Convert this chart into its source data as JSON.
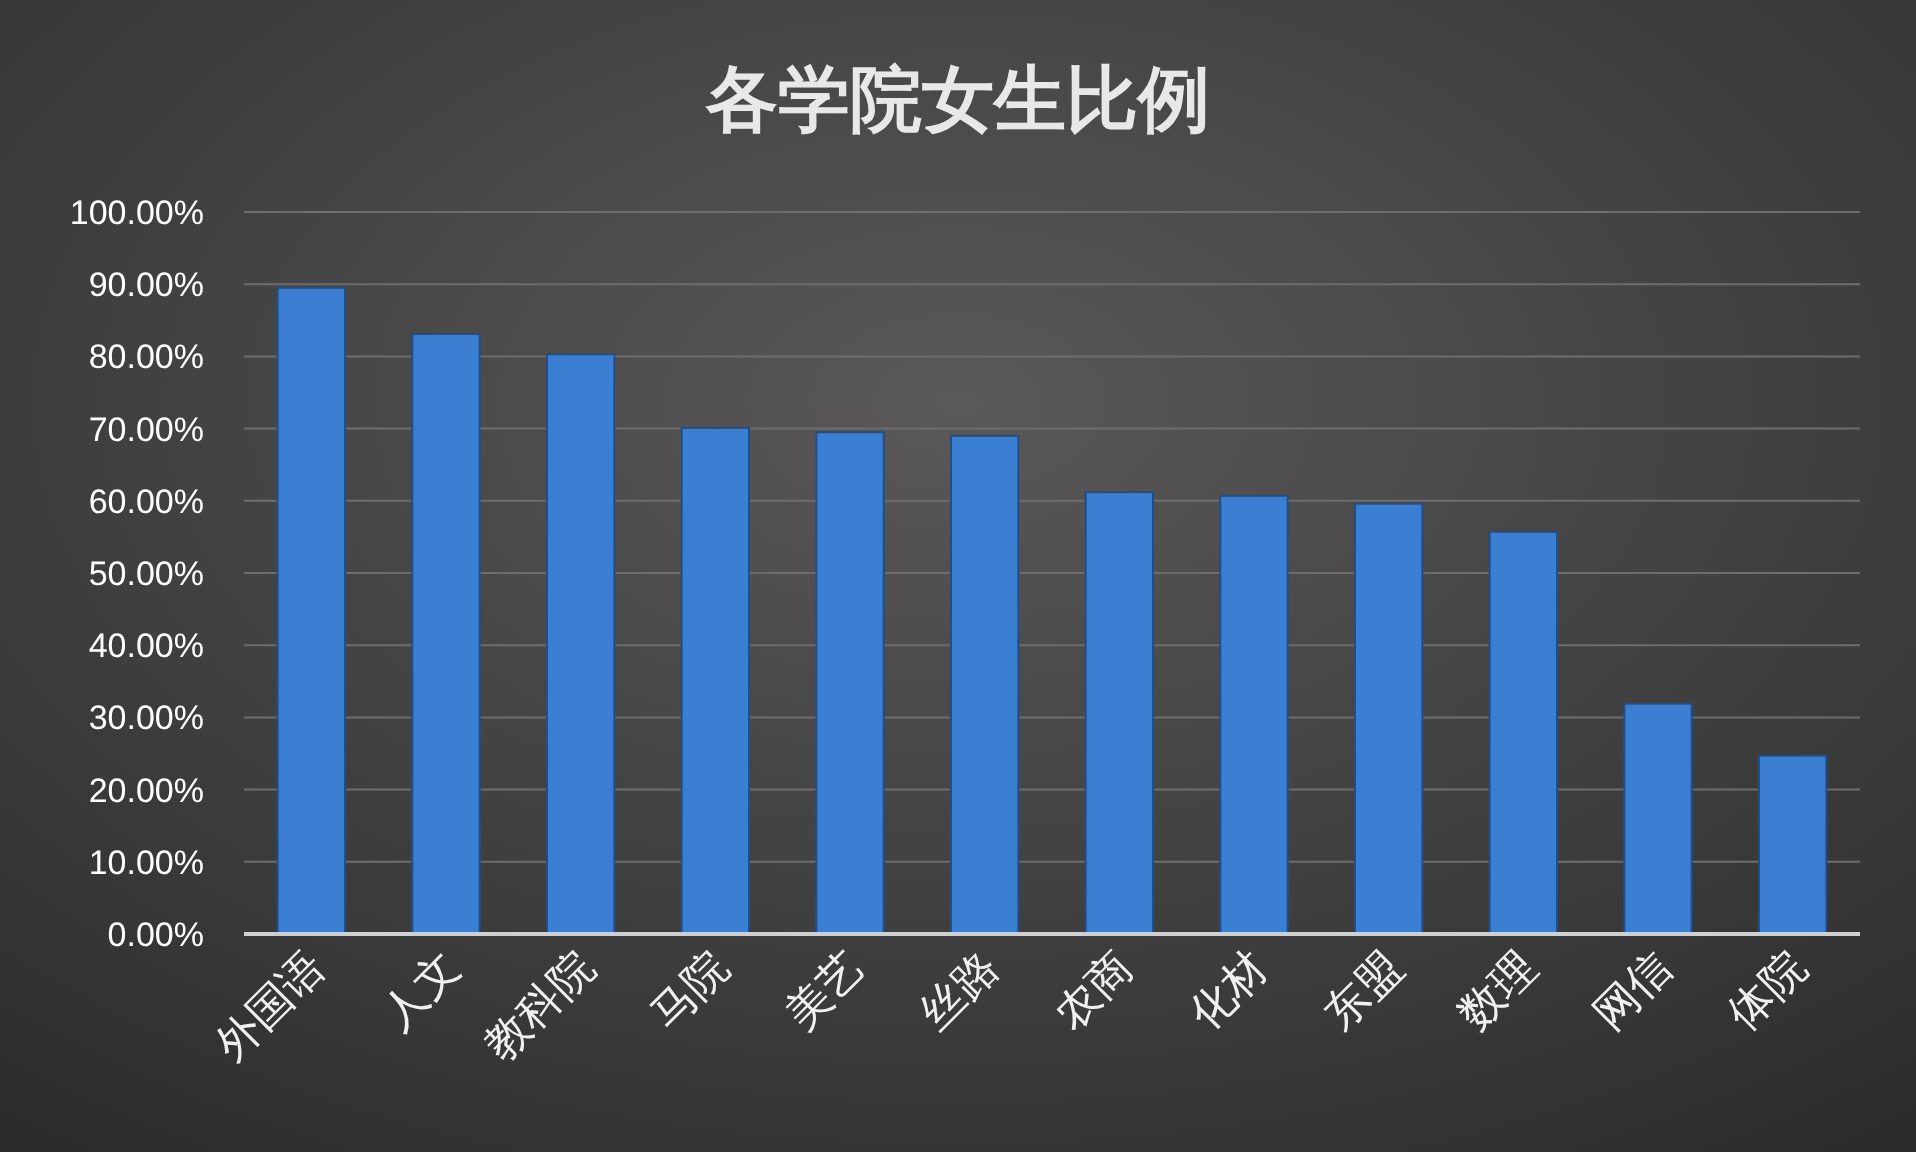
{
  "chart_data": {
    "type": "bar",
    "title": "各学院女生比例",
    "categories": [
      "外国语",
      "人文",
      "教科院",
      "马院",
      "美艺",
      "丝路",
      "农商",
      "化材",
      "东盟",
      "数理",
      "网信",
      "体院"
    ],
    "values": [
      89.5,
      83.1,
      80.3,
      70.1,
      69.5,
      69.0,
      61.2,
      60.7,
      59.6,
      55.7,
      31.9,
      24.7
    ],
    "color": "#3b7fd2",
    "ylim": [
      0,
      100
    ],
    "yticks": [
      {
        "value": 0,
        "label": "0.00%"
      },
      {
        "value": 10,
        "label": "10.00%"
      },
      {
        "value": 20,
        "label": "20.00%"
      },
      {
        "value": 30,
        "label": "30.00%"
      },
      {
        "value": 40,
        "label": "40.00%"
      },
      {
        "value": 50,
        "label": "50.00%"
      },
      {
        "value": 60,
        "label": "60.00%"
      },
      {
        "value": 70,
        "label": "70.00%"
      },
      {
        "value": 80,
        "label": "80.00%"
      },
      {
        "value": 90,
        "label": "90.00%"
      },
      {
        "value": 100,
        "label": "100.00%"
      }
    ],
    "grid": "y"
  }
}
